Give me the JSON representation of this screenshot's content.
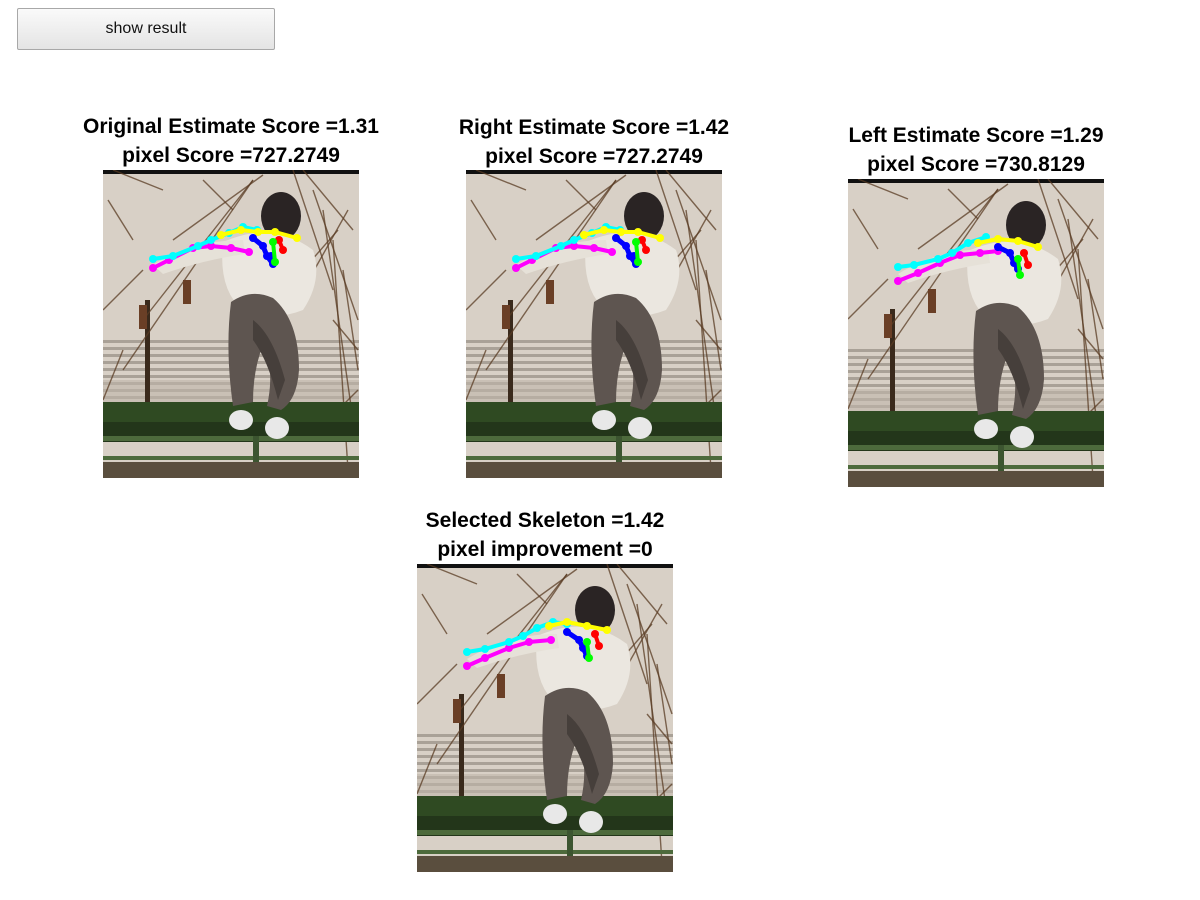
{
  "toolbar": {
    "show_result_label": "show result"
  },
  "panels": [
    {
      "line1": "Original Estimate Score =1.31",
      "line2": "pixel Score =727.2749",
      "variant": "original"
    },
    {
      "line1": "Right Estimate Score =1.42",
      "line2": "pixel Score =727.2749",
      "variant": "right"
    },
    {
      "line1": "Left Estimate Score =1.29",
      "line2": "pixel Score =730.8129",
      "variant": "left"
    },
    {
      "line1": "Selected Skeleton =1.42",
      "line2": "pixel improvement =0",
      "variant": "selected"
    }
  ],
  "colors": {
    "left_arm": "#00ffff",
    "right_arm": "#ff00ff",
    "shoulders": "#ffff00",
    "torso": "#0000ff",
    "head": "#00ff00",
    "torso_accent": "#ff0000"
  }
}
